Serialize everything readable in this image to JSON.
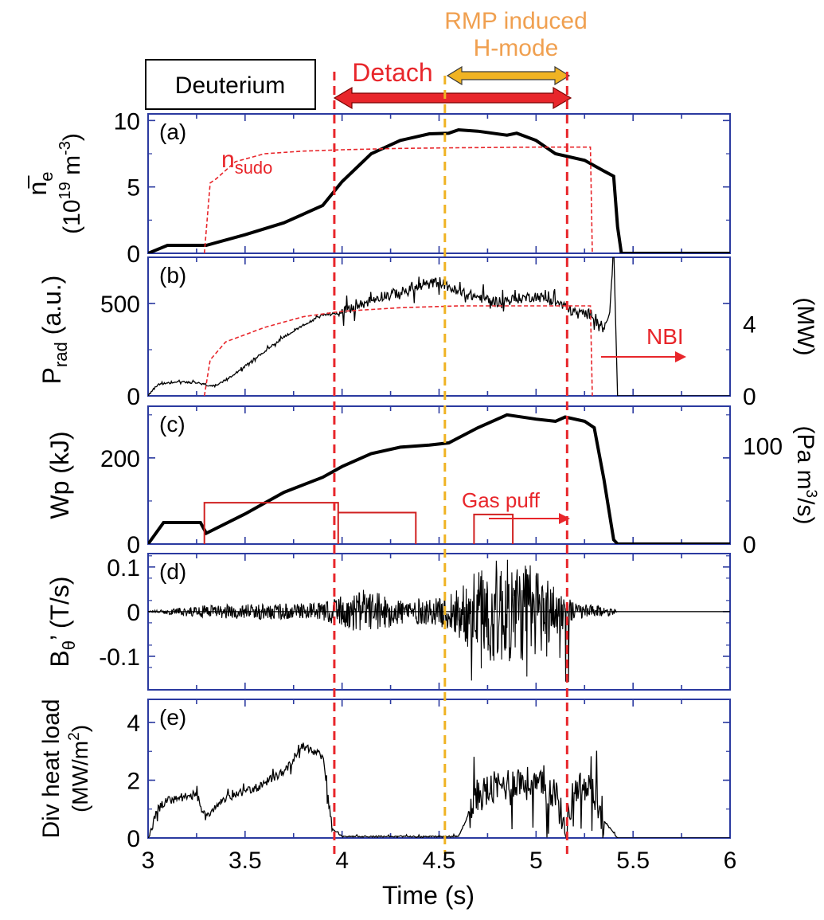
{
  "figure": {
    "species_box": "Deuterium",
    "xlabel": "Time (s)",
    "x_ticks": [
      "3",
      "3.5",
      "4",
      "4.5",
      "5",
      "5.5",
      "6"
    ],
    "xlim": [
      3,
      6
    ],
    "annotations": {
      "detach": "Detach",
      "rmp_line1": "RMP induced",
      "rmp_line2": "H-mode"
    },
    "markers": [
      {
        "name": "detach_start",
        "x": 3.96,
        "color": "#e8262b"
      },
      {
        "name": "rmp_hmode_start",
        "x": 4.53,
        "color": "#f0b323"
      },
      {
        "name": "detach_end",
        "x": 5.16,
        "color": "#e8262b"
      }
    ],
    "detach_span": [
      3.96,
      5.16
    ],
    "rmp_span": [
      4.53,
      5.16
    ]
  },
  "colors": {
    "axes": "#2b3aa0",
    "trace": "#000000",
    "red": "#e8262b",
    "orange": "#f0b323",
    "orange_text": "#f0a050"
  },
  "chart_data": [
    {
      "type": "line",
      "panel": "(a)",
      "ylabel": {
        "main": "n",
        "sub": "e",
        "line2": "(10",
        "sup1": "19",
        "mid": " m",
        "sup2": "-3",
        "end": ")"
      },
      "yticks": [
        "0",
        "5",
        "10"
      ],
      "ylim": [
        0,
        10.5
      ],
      "inline_label": {
        "main": "n",
        "sub": "sudo"
      },
      "series": [
        {
          "style": "black-thick",
          "values": [
            [
              3.0,
              0.0
            ],
            [
              3.1,
              0.6
            ],
            [
              3.3,
              0.6
            ],
            [
              3.5,
              1.4
            ],
            [
              3.7,
              2.3
            ],
            [
              3.9,
              3.6
            ],
            [
              4.0,
              5.4
            ],
            [
              4.15,
              7.5
            ],
            [
              4.3,
              8.5
            ],
            [
              4.45,
              9.0
            ],
            [
              4.55,
              9.05
            ],
            [
              4.6,
              9.3
            ],
            [
              4.7,
              9.2
            ],
            [
              4.85,
              8.9
            ],
            [
              4.9,
              9.05
            ],
            [
              5.0,
              8.5
            ],
            [
              5.1,
              7.5
            ],
            [
              5.25,
              7.0
            ],
            [
              5.35,
              6.2
            ],
            [
              5.4,
              5.8
            ],
            [
              5.42,
              2.0
            ],
            [
              5.44,
              0.0
            ],
            [
              6.0,
              0.0
            ]
          ]
        },
        {
          "style": "red-dashed",
          "values": [
            [
              3.29,
              0.0
            ],
            [
              3.32,
              5.3
            ],
            [
              3.35,
              5.6
            ],
            [
              3.45,
              6.9
            ],
            [
              3.6,
              7.5
            ],
            [
              3.8,
              7.7
            ],
            [
              4.0,
              7.8
            ],
            [
              4.3,
              7.9
            ],
            [
              4.6,
              7.95
            ],
            [
              5.0,
              8.0
            ],
            [
              5.28,
              8.0
            ],
            [
              5.29,
              0.0
            ]
          ]
        }
      ]
    },
    {
      "type": "line",
      "panel": "(b)",
      "ylabel": {
        "main": "P",
        "sub": "rad",
        "end": " (a.u.)"
      },
      "yticks": [
        "0",
        "500"
      ],
      "ylim": [
        0,
        750
      ],
      "y2label": "(MW)",
      "y2ticks": [
        "0",
        "4"
      ],
      "y2lim": [
        0,
        7.7
      ],
      "annotation": "NBI",
      "series": [
        {
          "style": "black-thin",
          "values": [
            [
              3.0,
              0
            ],
            [
              3.05,
              60
            ],
            [
              3.15,
              80
            ],
            [
              3.25,
              70
            ],
            [
              3.35,
              50
            ],
            [
              3.5,
              160
            ],
            [
              3.7,
              320
            ],
            [
              3.9,
              440
            ],
            [
              4.0,
              450
            ],
            [
              4.2,
              540
            ],
            [
              4.3,
              560
            ],
            [
              4.4,
              590
            ],
            [
              4.5,
              620
            ],
            [
              4.6,
              560
            ],
            [
              4.8,
              510
            ],
            [
              5.0,
              540
            ],
            [
              5.1,
              510
            ],
            [
              5.2,
              450
            ],
            [
              5.3,
              440
            ],
            [
              5.35,
              360
            ],
            [
              5.38,
              450
            ],
            [
              5.4,
              820
            ],
            [
              5.42,
              0
            ],
            [
              6.0,
              0
            ]
          ]
        },
        {
          "style": "red-dashed",
          "values": [
            [
              3.29,
              0
            ],
            [
              3.32,
              2.0
            ],
            [
              3.4,
              3.0
            ],
            [
              3.6,
              3.8
            ],
            [
              3.8,
              4.4
            ],
            [
              4.0,
              4.7
            ],
            [
              4.3,
              4.9
            ],
            [
              4.6,
              5.0
            ],
            [
              5.0,
              5.0
            ],
            [
              5.28,
              5.0
            ],
            [
              5.29,
              0.0
            ]
          ]
        }
      ]
    },
    {
      "type": "line",
      "panel": "(c)",
      "ylabel": {
        "main": "Wp (kJ)"
      },
      "yticks": [
        "0",
        "200"
      ],
      "ylim": [
        0,
        320
      ],
      "y2label": {
        "main": "(Pa m",
        "sup": "3",
        "end": "/s)"
      },
      "y2ticks": [
        "0",
        "100"
      ],
      "y2lim": [
        0,
        140
      ],
      "annotation": "Gas puff",
      "series": [
        {
          "style": "black-thick",
          "values": [
            [
              3.0,
              0
            ],
            [
              3.08,
              50
            ],
            [
              3.27,
              50
            ],
            [
              3.3,
              25
            ],
            [
              3.5,
              70
            ],
            [
              3.7,
              120
            ],
            [
              3.9,
              155
            ],
            [
              4.0,
              180
            ],
            [
              4.15,
              210
            ],
            [
              4.3,
              225
            ],
            [
              4.45,
              230
            ],
            [
              4.55,
              235
            ],
            [
              4.7,
              270
            ],
            [
              4.85,
              300
            ],
            [
              5.0,
              290
            ],
            [
              5.1,
              285
            ],
            [
              5.15,
              295
            ],
            [
              5.25,
              285
            ],
            [
              5.3,
              270
            ],
            [
              5.35,
              150
            ],
            [
              5.4,
              10
            ],
            [
              5.42,
              0
            ],
            [
              6.0,
              0
            ]
          ]
        },
        {
          "style": "red-thin",
          "values": [
            [
              3.29,
              0
            ],
            [
              3.29,
              42
            ],
            [
              3.98,
              42
            ],
            [
              3.98,
              0
            ]
          ]
        },
        {
          "style": "red-thin",
          "values": [
            [
              3.98,
              32
            ],
            [
              3.98,
              32
            ],
            [
              4.38,
              32
            ],
            [
              4.38,
              0
            ]
          ]
        },
        {
          "style": "red-thin",
          "values": [
            [
              4.68,
              0
            ],
            [
              4.68,
              30
            ],
            [
              4.88,
              30
            ],
            [
              4.88,
              0
            ]
          ]
        }
      ]
    },
    {
      "type": "line",
      "panel": "(d)",
      "ylabel": {
        "main": "B",
        "sub": "θ",
        "end": "’ (T/s)"
      },
      "yticks": [
        "-0.1",
        "0",
        "0.1"
      ],
      "ylim": [
        -0.175,
        0.13
      ],
      "envelope": [
        [
          3.0,
          0.001
        ],
        [
          3.3,
          0.015
        ],
        [
          3.6,
          0.018
        ],
        [
          3.9,
          0.02
        ],
        [
          4.1,
          0.05
        ],
        [
          4.3,
          0.03
        ],
        [
          4.5,
          0.03
        ],
        [
          4.65,
          0.08
        ],
        [
          4.8,
          0.12
        ],
        [
          5.0,
          0.11
        ],
        [
          5.1,
          0.06
        ],
        [
          5.2,
          0.02
        ],
        [
          5.4,
          0.008
        ],
        [
          5.42,
          0.0
        ],
        [
          6.0,
          0.0
        ]
      ]
    },
    {
      "type": "line",
      "panel": "(e)",
      "ylabel": {
        "main": "Div heat load",
        "line2": "(MW/m",
        "sup": "2",
        "end": ")"
      },
      "yticks": [
        "0",
        "2",
        "4"
      ],
      "ylim": [
        0,
        4.8
      ],
      "series": [
        {
          "style": "black-thin",
          "values": [
            [
              3.0,
              0.0
            ],
            [
              3.05,
              1.0
            ],
            [
              3.1,
              1.3
            ],
            [
              3.25,
              1.5
            ],
            [
              3.3,
              0.7
            ],
            [
              3.4,
              1.4
            ],
            [
              3.55,
              1.7
            ],
            [
              3.7,
              2.3
            ],
            [
              3.8,
              3.2
            ],
            [
              3.9,
              2.8
            ],
            [
              3.95,
              0.3
            ],
            [
              4.0,
              0.05
            ],
            [
              4.3,
              0.05
            ],
            [
              4.6,
              0.05
            ],
            [
              4.7,
              1.5
            ],
            [
              4.9,
              2.0
            ],
            [
              5.0,
              1.8
            ],
            [
              5.1,
              1.6
            ],
            [
              5.15,
              0.2
            ],
            [
              5.2,
              1.8
            ],
            [
              5.3,
              1.6
            ],
            [
              5.35,
              0.6
            ],
            [
              5.42,
              0.0
            ],
            [
              6.0,
              0.0
            ]
          ]
        }
      ]
    }
  ]
}
